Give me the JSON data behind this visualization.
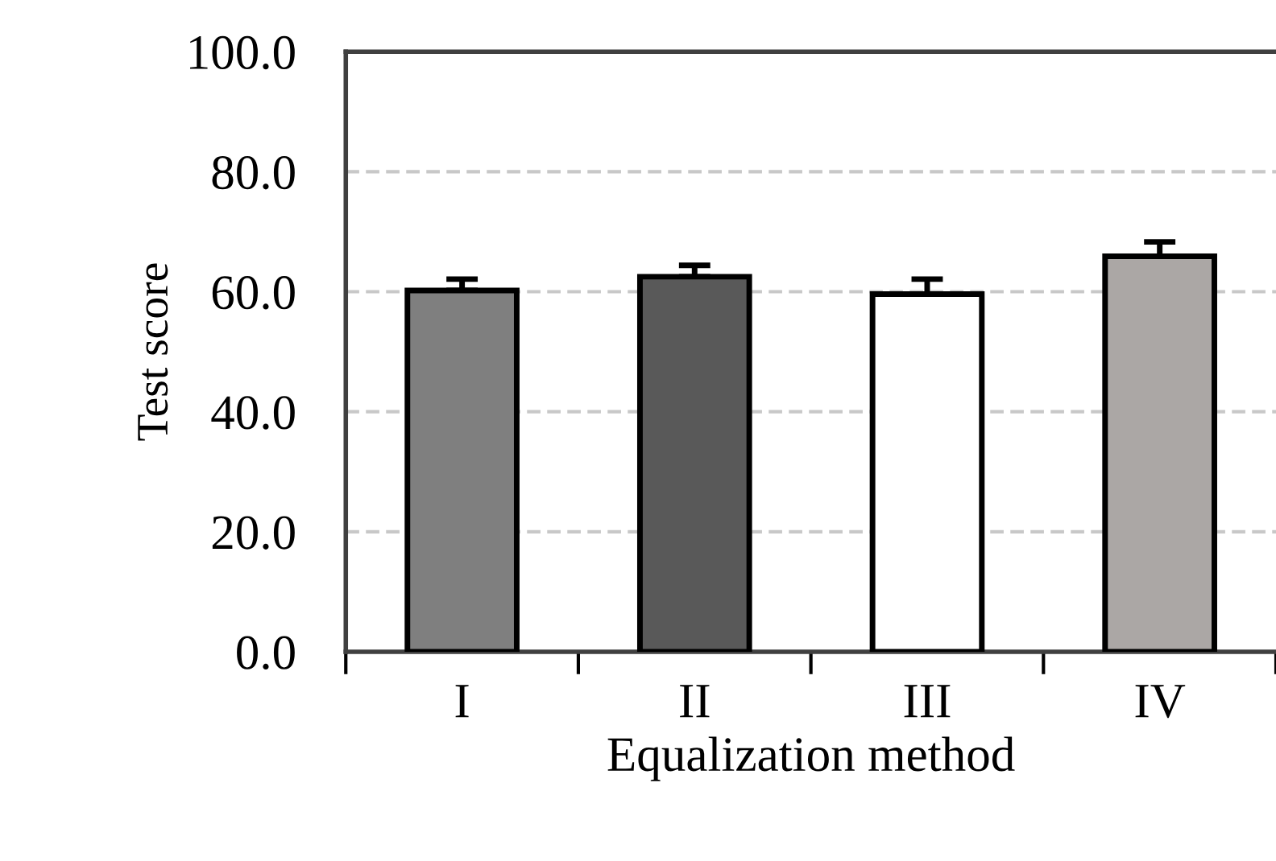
{
  "chart_data": {
    "type": "bar",
    "xlabel": "Equalization method",
    "ylabel": "Test score",
    "categories": [
      "I",
      "II",
      "III",
      "IV"
    ],
    "values": [
      60.2,
      62.5,
      59.6,
      65.9
    ],
    "colors": [
      "#7f7f7f",
      "#595959",
      "#ffffff",
      "#aba7a5"
    ],
    "errors": [
      [
        60.2,
        62.1
      ],
      [
        62.5,
        64.4
      ],
      [
        59.6,
        62.1
      ],
      [
        65.9,
        68.3
      ]
    ],
    "ylim": [
      0,
      100
    ],
    "yticks": [
      {
        "value": 0,
        "label": "0.0"
      },
      {
        "value": 20,
        "label": "20.0"
      },
      {
        "value": 40,
        "label": "40.0"
      },
      {
        "value": 60,
        "label": "60.0"
      },
      {
        "value": 80,
        "label": "80.0"
      },
      {
        "value": 100,
        "label": "100.0"
      }
    ],
    "grid": "y",
    "legend": false
  }
}
